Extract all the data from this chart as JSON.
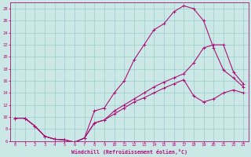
{
  "xlabel": "Windchill (Refroidissement éolien,°C)",
  "xlim": [
    -0.5,
    23.5
  ],
  "ylim": [
    6,
    29
  ],
  "xticks": [
    0,
    1,
    2,
    3,
    4,
    5,
    6,
    7,
    8,
    9,
    10,
    11,
    12,
    13,
    14,
    15,
    16,
    17,
    18,
    19,
    20,
    21,
    22,
    23
  ],
  "yticks": [
    6,
    8,
    10,
    12,
    14,
    16,
    18,
    20,
    22,
    24,
    26,
    28
  ],
  "bg_color": "#cce8e6",
  "line_color": "#aa1177",
  "grid_color": "#99cccc",
  "curve1_x": [
    0,
    1,
    2,
    3,
    4,
    5,
    6,
    7,
    8,
    9,
    10,
    11,
    12,
    13,
    14,
    15,
    16,
    17,
    18,
    19,
    20,
    21,
    22,
    23
  ],
  "curve1_y": [
    9.8,
    9.8,
    8.5,
    6.8,
    6.3,
    6.2,
    5.8,
    6.5,
    11.0,
    11.5,
    14.0,
    16.0,
    19.5,
    22.0,
    24.5,
    25.5,
    27.5,
    28.5,
    28.0,
    26.0,
    21.5,
    17.8,
    16.5,
    15.0
  ],
  "curve2_x": [
    0,
    1,
    2,
    3,
    4,
    5,
    6,
    7,
    8,
    9,
    10,
    11,
    12,
    13,
    14,
    15,
    16,
    17,
    18,
    19,
    20,
    21,
    22,
    23
  ],
  "curve2_y": [
    9.8,
    9.8,
    8.5,
    6.8,
    6.3,
    6.2,
    5.8,
    6.5,
    9.0,
    9.5,
    11.0,
    12.0,
    13.0,
    14.0,
    15.0,
    15.8,
    16.5,
    17.2,
    19.0,
    21.5,
    22.0,
    22.0,
    17.5,
    15.5
  ],
  "curve3_x": [
    0,
    1,
    2,
    3,
    4,
    5,
    6,
    7,
    8,
    9,
    10,
    11,
    12,
    13,
    14,
    15,
    16,
    17,
    18,
    19,
    20,
    21,
    22,
    23
  ],
  "curve3_y": [
    9.8,
    9.8,
    8.5,
    6.8,
    6.3,
    6.2,
    5.8,
    6.5,
    9.0,
    9.5,
    10.5,
    11.5,
    12.5,
    13.2,
    14.0,
    14.8,
    15.5,
    16.2,
    13.5,
    12.5,
    13.0,
    14.0,
    14.5,
    14.0
  ]
}
